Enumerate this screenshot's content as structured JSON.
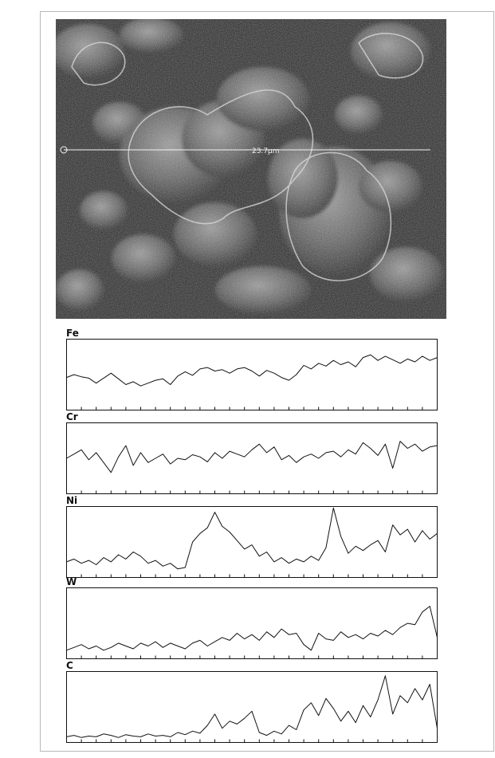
{
  "micrograph": {
    "scan_label": "23.7µm"
  },
  "chart_data": [
    {
      "type": "line",
      "title": "Fe",
      "x": [
        0,
        2,
        4,
        6,
        8,
        10,
        12,
        14,
        16,
        18,
        20,
        22,
        24,
        26,
        28,
        30,
        32,
        34,
        36,
        38,
        40,
        42,
        44,
        46,
        48,
        50,
        52,
        54,
        56,
        58,
        60,
        62,
        64,
        66,
        68,
        70,
        72,
        74,
        76,
        78,
        80,
        82,
        84,
        86,
        88,
        90,
        92,
        94,
        96,
        98,
        100
      ],
      "values": [
        0.46,
        0.5,
        0.47,
        0.45,
        0.38,
        0.45,
        0.52,
        0.44,
        0.36,
        0.4,
        0.34,
        0.38,
        0.42,
        0.44,
        0.36,
        0.48,
        0.54,
        0.49,
        0.58,
        0.6,
        0.55,
        0.57,
        0.52,
        0.58,
        0.6,
        0.55,
        0.48,
        0.56,
        0.52,
        0.46,
        0.42,
        0.5,
        0.63,
        0.58,
        0.66,
        0.62,
        0.7,
        0.64,
        0.68,
        0.61,
        0.74,
        0.78,
        0.7,
        0.76,
        0.71,
        0.66,
        0.72,
        0.68,
        0.76,
        0.7,
        0.74
      ],
      "ylim": [
        0,
        1
      ]
    },
    {
      "type": "line",
      "title": "Cr",
      "x": [
        0,
        2,
        4,
        6,
        8,
        10,
        12,
        14,
        16,
        18,
        20,
        22,
        24,
        26,
        28,
        30,
        32,
        34,
        36,
        38,
        40,
        42,
        44,
        46,
        48,
        50,
        52,
        54,
        56,
        58,
        60,
        62,
        64,
        66,
        68,
        70,
        72,
        74,
        76,
        78,
        80,
        82,
        84,
        86,
        88,
        90,
        92,
        94,
        96,
        98,
        100
      ],
      "values": [
        0.5,
        0.56,
        0.62,
        0.48,
        0.58,
        0.44,
        0.3,
        0.52,
        0.68,
        0.4,
        0.58,
        0.44,
        0.5,
        0.56,
        0.42,
        0.5,
        0.48,
        0.55,
        0.52,
        0.45,
        0.58,
        0.5,
        0.6,
        0.56,
        0.52,
        0.62,
        0.7,
        0.58,
        0.66,
        0.48,
        0.54,
        0.44,
        0.52,
        0.56,
        0.5,
        0.58,
        0.6,
        0.52,
        0.62,
        0.56,
        0.72,
        0.64,
        0.54,
        0.7,
        0.36,
        0.74,
        0.64,
        0.7,
        0.6,
        0.66,
        0.68
      ],
      "ylim": [
        0,
        1
      ]
    },
    {
      "type": "line",
      "title": "Ni",
      "x": [
        0,
        2,
        4,
        6,
        8,
        10,
        12,
        14,
        16,
        18,
        20,
        22,
        24,
        26,
        28,
        30,
        32,
        34,
        36,
        38,
        40,
        42,
        44,
        46,
        48,
        50,
        52,
        54,
        56,
        58,
        60,
        62,
        64,
        66,
        68,
        70,
        72,
        74,
        76,
        78,
        80,
        82,
        84,
        86,
        88,
        90,
        92,
        94,
        96,
        98,
        100
      ],
      "values": [
        0.22,
        0.26,
        0.2,
        0.24,
        0.18,
        0.28,
        0.22,
        0.32,
        0.26,
        0.36,
        0.3,
        0.2,
        0.24,
        0.16,
        0.2,
        0.12,
        0.14,
        0.5,
        0.62,
        0.7,
        0.92,
        0.72,
        0.64,
        0.52,
        0.4,
        0.46,
        0.3,
        0.36,
        0.22,
        0.28,
        0.2,
        0.26,
        0.22,
        0.3,
        0.24,
        0.42,
        0.98,
        0.58,
        0.34,
        0.44,
        0.38,
        0.46,
        0.52,
        0.36,
        0.74,
        0.6,
        0.68,
        0.5,
        0.66,
        0.54,
        0.62
      ],
      "ylim": [
        0,
        1
      ]
    },
    {
      "type": "line",
      "title": "W",
      "x": [
        0,
        2,
        4,
        6,
        8,
        10,
        12,
        14,
        16,
        18,
        20,
        22,
        24,
        26,
        28,
        30,
        32,
        34,
        36,
        38,
        40,
        42,
        44,
        46,
        48,
        50,
        52,
        54,
        56,
        58,
        60,
        62,
        64,
        66,
        68,
        70,
        72,
        74,
        76,
        78,
        80,
        82,
        84,
        86,
        88,
        90,
        92,
        94,
        96,
        98,
        100
      ],
      "values": [
        0.12,
        0.16,
        0.2,
        0.14,
        0.18,
        0.12,
        0.16,
        0.22,
        0.18,
        0.14,
        0.22,
        0.18,
        0.24,
        0.16,
        0.22,
        0.18,
        0.14,
        0.22,
        0.26,
        0.18,
        0.24,
        0.3,
        0.26,
        0.36,
        0.28,
        0.34,
        0.26,
        0.38,
        0.3,
        0.42,
        0.34,
        0.36,
        0.2,
        0.12,
        0.36,
        0.28,
        0.26,
        0.38,
        0.3,
        0.34,
        0.28,
        0.36,
        0.32,
        0.4,
        0.34,
        0.44,
        0.5,
        0.48,
        0.66,
        0.74,
        0.3
      ],
      "ylim": [
        0,
        1
      ]
    },
    {
      "type": "line",
      "title": "C",
      "x": [
        0,
        2,
        4,
        6,
        8,
        10,
        12,
        14,
        16,
        18,
        20,
        22,
        24,
        26,
        28,
        30,
        32,
        34,
        36,
        38,
        40,
        42,
        44,
        46,
        48,
        50,
        52,
        54,
        56,
        58,
        60,
        62,
        64,
        66,
        68,
        70,
        72,
        74,
        76,
        78,
        80,
        82,
        84,
        86,
        88,
        90,
        92,
        94,
        96,
        98,
        100
      ],
      "values": [
        0.08,
        0.1,
        0.07,
        0.09,
        0.08,
        0.12,
        0.1,
        0.07,
        0.11,
        0.09,
        0.08,
        0.12,
        0.09,
        0.1,
        0.08,
        0.14,
        0.11,
        0.16,
        0.13,
        0.24,
        0.4,
        0.2,
        0.3,
        0.26,
        0.34,
        0.44,
        0.14,
        0.1,
        0.16,
        0.12,
        0.24,
        0.18,
        0.46,
        0.56,
        0.38,
        0.62,
        0.48,
        0.3,
        0.44,
        0.28,
        0.52,
        0.36,
        0.6,
        0.94,
        0.4,
        0.66,
        0.56,
        0.76,
        0.6,
        0.82,
        0.2
      ],
      "ylim": [
        0,
        1
      ]
    }
  ]
}
